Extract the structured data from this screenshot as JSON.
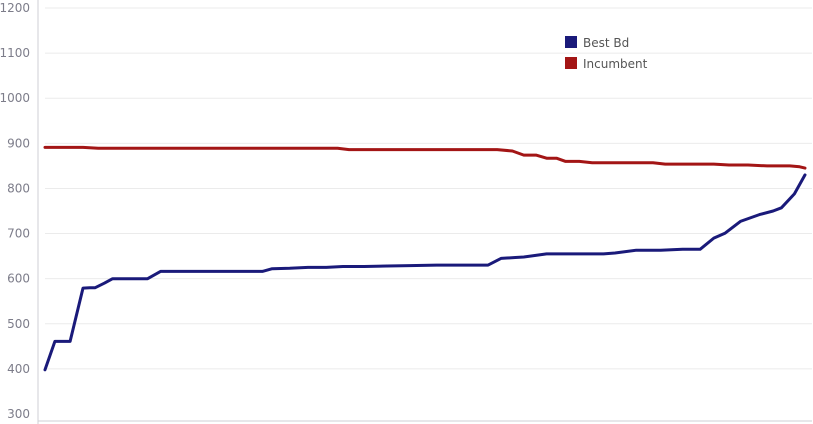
{
  "chart_data": {
    "type": "line",
    "title": "",
    "xlabel": "",
    "ylabel": "",
    "ylim": [
      300,
      1200
    ],
    "yticks": [
      300,
      400,
      500,
      600,
      700,
      800,
      900,
      1000,
      1100,
      1200
    ],
    "xlim": [
      0,
      100
    ],
    "grid": true,
    "legend_position": "top-right",
    "series": [
      {
        "name": "Best Bd",
        "color": "#1a1a7a",
        "x": [
          0,
          1.3,
          3.3,
          5,
          5.9,
          6.6,
          7.8,
          8.9,
          11,
          13.5,
          15.2,
          17.6,
          19,
          21,
          23,
          25,
          28.6,
          29.9,
          32.2,
          34.6,
          37,
          39.2,
          42,
          45,
          48,
          51.5,
          54.5,
          56.8,
          58.3,
          60,
          61.9,
          63,
          66,
          70,
          73.5,
          75,
          77.8,
          79.5,
          81,
          83.9,
          84.6,
          86.2,
          88,
          89.5,
          91.5,
          94,
          95.8,
          96.9,
          98.6,
          100
        ],
        "y": [
          398,
          461,
          461,
          579,
          580,
          580,
          590,
          600,
          600,
          600,
          616,
          616,
          616,
          616,
          616,
          616,
          616,
          622,
          623,
          625,
          625,
          627,
          627,
          628,
          629,
          630,
          630,
          630,
          630,
          645,
          647,
          648,
          655,
          655,
          655,
          657,
          663,
          663,
          663,
          665,
          665,
          665,
          690,
          701,
          727,
          742,
          750,
          757,
          788,
          830
        ]
      },
      {
        "name": "Incumbent",
        "color": "#a31515",
        "x": [
          0,
          5,
          7,
          10,
          15,
          20,
          25,
          30,
          35,
          38.5,
          40,
          45,
          50,
          55,
          57.5,
          59.5,
          61.5,
          63,
          64.6,
          66,
          67.3,
          68.5,
          70.3,
          72,
          74,
          75,
          80,
          81.6,
          83.5,
          85,
          88,
          90,
          92.5,
          95,
          98,
          99.3,
          100
        ],
        "y": [
          891,
          891,
          889,
          889,
          889,
          889,
          889,
          889,
          889,
          889,
          886,
          886,
          886,
          886,
          886,
          886,
          883,
          874,
          874,
          867,
          867,
          860,
          860,
          857,
          857,
          857,
          857,
          854,
          854,
          854,
          854,
          852,
          852,
          850,
          850,
          848,
          845
        ]
      }
    ]
  }
}
